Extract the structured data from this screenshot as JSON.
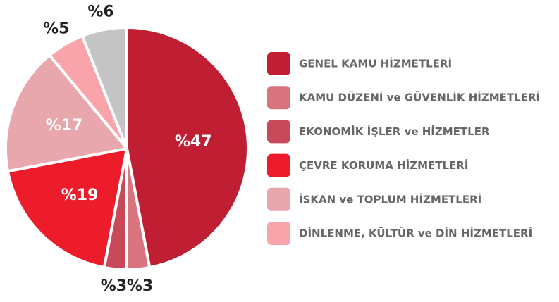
{
  "chart_data": {
    "type": "pie",
    "categories": [
      "GENEL KAMU HİZMETLERİ",
      "KAMU DÜZENİ ve GÜVENLİK HİZMETLERİ",
      "EKONOMİK İŞLER ve HİZMETLER",
      "ÇEVRE KORUMA HİZMETLERİ",
      "İSKAN ve TOPLUM HİZMETLERİ",
      "DİNLENME, KÜLTÜR ve DİN HİZMETLERİ",
      null
    ],
    "values": [
      47,
      3,
      3,
      19,
      17,
      5,
      6
    ],
    "value_labels": [
      "%47",
      "%3",
      "%3",
      "%19",
      "%17",
      "%5",
      "%6"
    ],
    "colors": [
      "#c01f33",
      "#d9747f",
      "#c84a5a",
      "#ed1c2a",
      "#e8a6ad",
      "#f9a3ab",
      "#c4c4c4"
    ],
    "legend": "right"
  }
}
